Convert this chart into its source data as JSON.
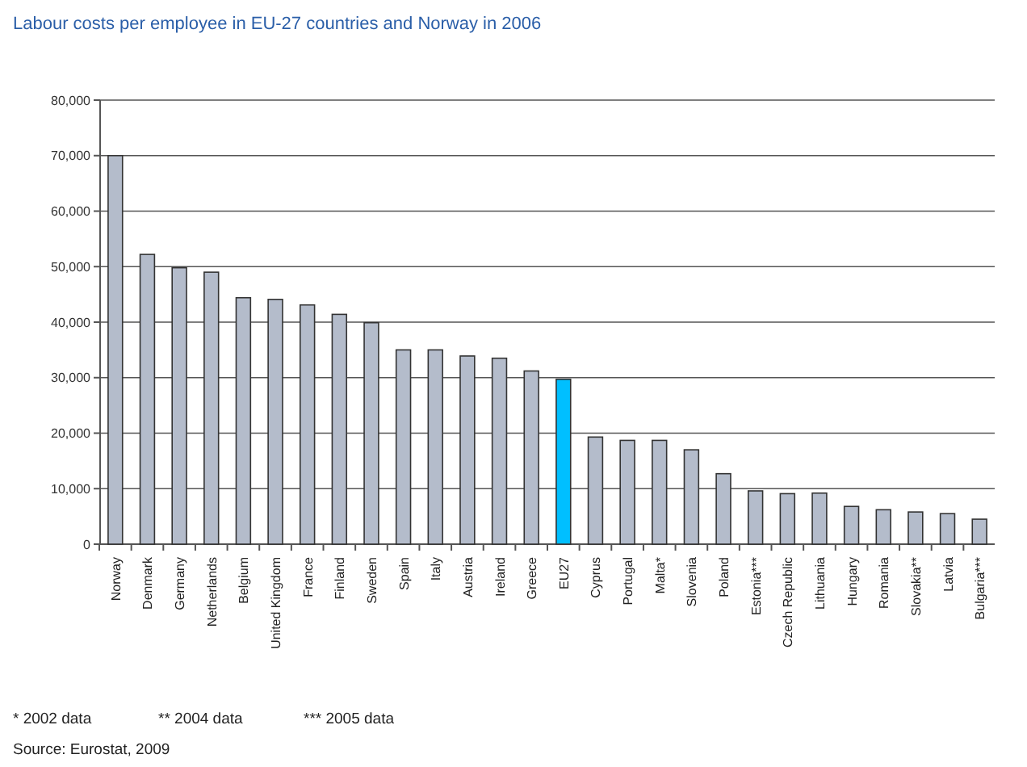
{
  "chart_data": {
    "type": "bar",
    "title": "Labour costs per employee in EU-27 countries and Norway in 2006",
    "categories": [
      "Norway",
      "Denmark",
      "Germany",
      "Netherlands",
      "Belgium",
      "United Kingdom",
      "France",
      "Finland",
      "Sweden",
      "Spain",
      "Italy",
      "Austria",
      "Ireland",
      "Greece",
      "EU27",
      "Cyprus",
      "Portugal",
      "Malta*",
      "Slovenia",
      "Poland",
      "Estonia***",
      "Czech Republic",
      "Lithuania",
      "Hungary",
      "Romania",
      "Slovakia**",
      "Latvia",
      "Bulgaria***"
    ],
    "values": [
      70000,
      52200,
      49800,
      49000,
      44400,
      44100,
      43100,
      41400,
      39900,
      35000,
      35000,
      33900,
      33500,
      31200,
      29700,
      19300,
      18700,
      18700,
      17000,
      12700,
      9600,
      9100,
      9200,
      6800,
      6200,
      5800,
      5500,
      4500
    ],
    "colors": [
      "#b4bccb",
      "#b4bccb",
      "#b4bccb",
      "#b4bccb",
      "#b4bccb",
      "#b4bccb",
      "#b4bccb",
      "#b4bccb",
      "#b4bccb",
      "#b4bccb",
      "#b4bccb",
      "#b4bccb",
      "#b4bccb",
      "#b4bccb",
      "#00bfff",
      "#b4bccb",
      "#b4bccb",
      "#b4bccb",
      "#b4bccb",
      "#b4bccb",
      "#b4bccb",
      "#b4bccb",
      "#b4bccb",
      "#b4bccb",
      "#b4bccb",
      "#b4bccb",
      "#b4bccb",
      "#b4bccb"
    ],
    "ylim": [
      0,
      80000
    ],
    "yticks": [
      {
        "value": 0,
        "label": "0"
      },
      {
        "value": 10000,
        "label": "10,000"
      },
      {
        "value": 20000,
        "label": "20,000"
      },
      {
        "value": 30000,
        "label": "30,000"
      },
      {
        "value": 40000,
        "label": "40,000"
      },
      {
        "value": 50000,
        "label": "50,000"
      },
      {
        "value": 60000,
        "label": "60,000"
      },
      {
        "value": 70000,
        "label": "70,000"
      },
      {
        "value": 80000,
        "label": "80,000"
      }
    ],
    "grid": "y",
    "annotations": [
      "*  2002 data",
      "**  2004 data",
      "***  2005 data",
      "Source: Eurostat, 2009"
    ]
  }
}
